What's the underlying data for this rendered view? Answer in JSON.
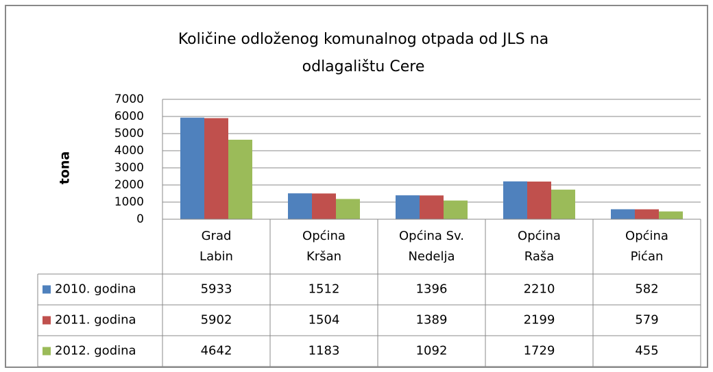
{
  "chart_data": {
    "type": "bar",
    "title": "Količine odloženog  komunalnog  otpada  od JLS na\nodlagalištu Cere",
    "y_label": "tona",
    "categories": [
      "Grad\nLabin",
      "Općina\nKršan",
      "Općina Sv.\nNedelja",
      "Općina\nRaša",
      "Općina\nPićan"
    ],
    "series": [
      {
        "name": "2010. godina",
        "color": "#4f81bd",
        "values": [
          5933,
          1512,
          1396,
          2210,
          582
        ]
      },
      {
        "name": "2011. godina",
        "color": "#c0504d",
        "values": [
          5902,
          1504,
          1389,
          2199,
          579
        ]
      },
      {
        "name": "2012. godina",
        "color": "#9bbb59",
        "values": [
          4642,
          1183,
          1092,
          1729,
          455
        ]
      }
    ],
    "ylim": [
      0,
      7000
    ],
    "yticks": [
      0,
      1000,
      2000,
      3000,
      4000,
      5000,
      6000,
      7000
    ],
    "grid": true
  }
}
